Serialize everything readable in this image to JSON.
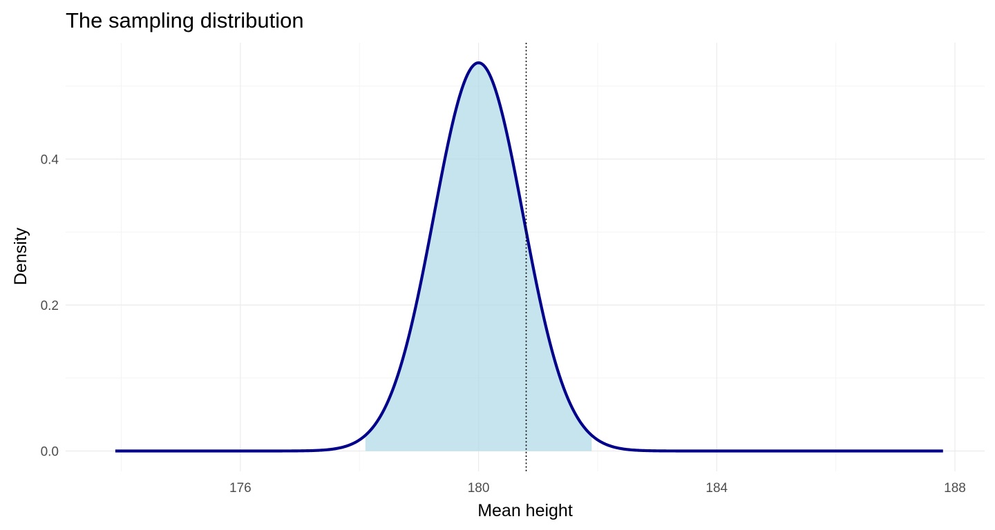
{
  "chart_data": {
    "type": "area",
    "title": "The sampling distribution",
    "xlabel": "Mean height",
    "ylabel": "Density",
    "xlim": [
      173.9,
      187.9
    ],
    "ylim": [
      0,
      0.53
    ],
    "x_ticks": [
      176,
      180,
      184,
      188
    ],
    "x_tick_labels": [
      "176",
      "180",
      "184",
      "188"
    ],
    "y_ticks": [
      0.0,
      0.2,
      0.4
    ],
    "y_tick_labels": [
      "0.0",
      "0.2",
      "0.4"
    ],
    "grid": true,
    "series": [
      {
        "distribution": "normal",
        "mean": 180,
        "sd": 0.75,
        "x_range": [
          173.9,
          187.8
        ],
        "line_color": "#00008b",
        "fill_color": "#add8e6",
        "fill_range": [
          178.1,
          181.9
        ]
      }
    ],
    "reference_line": {
      "x": 180.8,
      "style": "dotted",
      "color": "#000000"
    }
  }
}
